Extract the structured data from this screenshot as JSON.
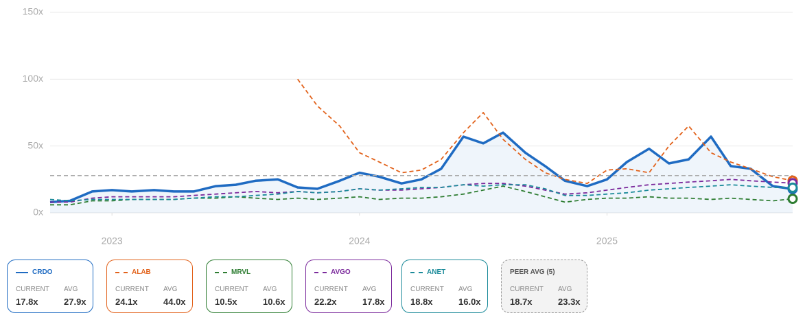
{
  "chart_data": {
    "type": "line",
    "x": [
      2022.75,
      2022.83,
      2022.92,
      2023.0,
      2023.08,
      2023.17,
      2023.25,
      2023.33,
      2023.42,
      2023.5,
      2023.58,
      2023.67,
      2023.75,
      2023.83,
      2023.92,
      2024.0,
      2024.08,
      2024.17,
      2024.25,
      2024.33,
      2024.42,
      2024.5,
      2024.58,
      2024.67,
      2024.75,
      2024.83,
      2024.92,
      2025.0,
      2025.08,
      2025.17,
      2025.25,
      2025.33,
      2025.42,
      2025.5,
      2025.58,
      2025.67,
      2025.75
    ],
    "xlim": [
      2022.75,
      2025.75
    ],
    "xticks": [
      2023,
      2024,
      2025
    ],
    "ylim": [
      0,
      150
    ],
    "yticks": [
      {
        "value": 0,
        "label": "0x"
      },
      {
        "value": 50,
        "label": "50x"
      },
      {
        "value": 100,
        "label": "100x"
      },
      {
        "value": 150,
        "label": "150x"
      }
    ],
    "grid": true,
    "card_headers": [
      "CURRENT",
      "AVG"
    ],
    "series": [
      {
        "name": "CRDO",
        "color": "#1f6bc2",
        "dashed": false,
        "area": true,
        "values": [
          8,
          9,
          16,
          17,
          16,
          17,
          16,
          16,
          20,
          21,
          24,
          25,
          19,
          18,
          24,
          30,
          27,
          22,
          25,
          33,
          57,
          52,
          60,
          45,
          35,
          24,
          20,
          25,
          38,
          48,
          37,
          40,
          57,
          35,
          33,
          20,
          17.8
        ],
        "current": {
          "value": 17.8,
          "label": "17.8x"
        },
        "avg": {
          "value": 27.9,
          "label": "27.9x"
        }
      },
      {
        "name": "ALAB",
        "color": "#e2621b",
        "dashed": true,
        "area": false,
        "values": [
          null,
          null,
          null,
          null,
          null,
          null,
          null,
          null,
          null,
          null,
          null,
          null,
          100,
          80,
          65,
          45,
          38,
          30,
          32,
          40,
          60,
          75,
          55,
          40,
          30,
          25,
          22,
          32,
          33,
          30,
          50,
          65,
          45,
          38,
          33,
          27,
          24.1
        ],
        "current": {
          "value": 24.1,
          "label": "24.1x"
        },
        "avg": {
          "value": 44.0,
          "label": "44.0x"
        }
      },
      {
        "name": "MRVL",
        "color": "#2e7d32",
        "dashed": true,
        "area": false,
        "values": [
          6,
          6,
          9,
          9,
          10,
          10,
          10,
          11,
          11,
          12,
          11,
          10,
          11,
          10,
          11,
          12,
          10,
          11,
          11,
          12,
          14,
          17,
          20,
          16,
          12,
          8,
          10,
          11,
          11,
          12,
          11,
          11,
          10,
          11,
          10,
          9,
          10.5
        ],
        "current": {
          "value": 10.5,
          "label": "10.5x"
        },
        "avg": {
          "value": 10.6,
          "label": "10.6x"
        }
      },
      {
        "name": "AVGO",
        "color": "#7b2a9c",
        "dashed": true,
        "area": false,
        "values": [
          8,
          8,
          11,
          12,
          12,
          12,
          12,
          13,
          14,
          15,
          16,
          15,
          16,
          15,
          16,
          18,
          17,
          17,
          18,
          19,
          21,
          22,
          22,
          20,
          17,
          14,
          15,
          17,
          19,
          21,
          22,
          23,
          24,
          25,
          24,
          23,
          22.2
        ],
        "current": {
          "value": 22.2,
          "label": "22.2x"
        },
        "avg": {
          "value": 17.8,
          "label": "17.8x"
        }
      },
      {
        "name": "ANET",
        "color": "#1a8a99",
        "dashed": true,
        "area": false,
        "values": [
          10,
          9,
          10,
          10,
          10,
          10,
          10,
          11,
          12,
          12,
          13,
          14,
          16,
          15,
          16,
          18,
          17,
          18,
          19,
          19,
          21,
          20,
          21,
          21,
          18,
          13,
          13,
          14,
          15,
          17,
          18,
          19,
          20,
          21,
          20,
          19,
          18.8
        ],
        "current": {
          "value": 18.8,
          "label": "18.8x"
        },
        "avg": {
          "value": 16.0,
          "label": "16.0x"
        }
      }
    ],
    "peer_avg": {
      "name": "PEER AVG (5)",
      "current": {
        "value": 18.7,
        "label": "18.7x"
      },
      "avg": {
        "value": 23.3,
        "label": "23.3x"
      }
    }
  }
}
